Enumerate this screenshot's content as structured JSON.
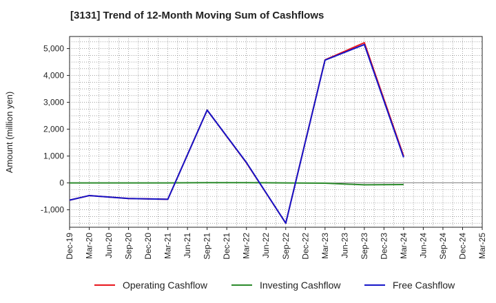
{
  "chart_data": {
    "type": "line",
    "title": "[3131]  Trend of 12-Month Moving Sum of Cashflows",
    "xlabel": "",
    "ylabel": "Amount (million yen)",
    "categories": [
      "Dec-19",
      "Mar-20",
      "Jun-20",
      "Sep-20",
      "Dec-20",
      "Mar-21",
      "Jun-21",
      "Sep-21",
      "Dec-21",
      "Mar-22",
      "Jun-22",
      "Sep-22",
      "Dec-22",
      "Mar-23",
      "Jun-23",
      "Sep-23",
      "Dec-23",
      "Mar-24",
      "Jun-24",
      "Sep-24",
      "Dec-24",
      "Mar-25"
    ],
    "ylim": [
      -1650,
      5450
    ],
    "yticks": [
      -1000,
      0,
      1000,
      2000,
      3000,
      4000,
      5000
    ],
    "ytick_labels": [
      "-1,000",
      "0",
      "1,000",
      "2,000",
      "3,000",
      "4,000",
      "5,000"
    ],
    "grid": true,
    "legend_position": "bottom",
    "series": [
      {
        "name": "Operating Cashflow",
        "color": "#e8141b",
        "values": [
          -640,
          -470,
          null,
          -580,
          null,
          -610,
          null,
          2710,
          null,
          750,
          null,
          -1500,
          null,
          4580,
          null,
          5220,
          null,
          1000,
          null,
          null,
          null,
          null
        ]
      },
      {
        "name": "Investing Cashflow",
        "color": "#2a8a2a",
        "values": [
          0,
          0,
          null,
          0,
          null,
          0,
          null,
          10,
          null,
          10,
          null,
          0,
          null,
          -10,
          null,
          -70,
          null,
          -60,
          null,
          null,
          null,
          null
        ]
      },
      {
        "name": "Free Cashflow",
        "color": "#1414c8",
        "values": [
          -640,
          -470,
          null,
          -580,
          null,
          -610,
          null,
          2710,
          null,
          760,
          null,
          -1500,
          null,
          4570,
          null,
          5150,
          null,
          950,
          null,
          null,
          null,
          null
        ]
      }
    ]
  }
}
